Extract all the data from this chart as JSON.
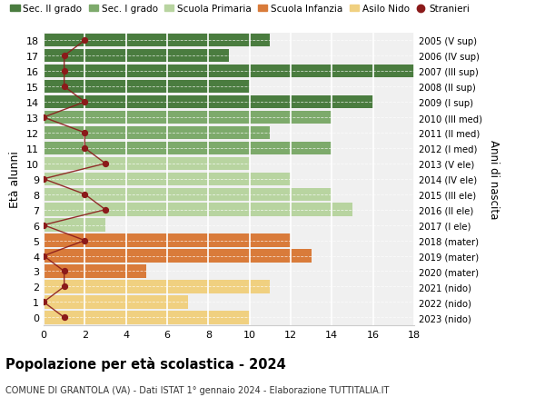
{
  "ages": [
    18,
    17,
    16,
    15,
    14,
    13,
    12,
    11,
    10,
    9,
    8,
    7,
    6,
    5,
    4,
    3,
    2,
    1,
    0
  ],
  "bar_values": [
    11,
    9,
    18,
    10,
    16,
    14,
    11,
    14,
    10,
    12,
    14,
    15,
    3,
    12,
    13,
    5,
    11,
    7,
    10
  ],
  "bar_colors": [
    "#4a7c3f",
    "#4a7c3f",
    "#4a7c3f",
    "#4a7c3f",
    "#4a7c3f",
    "#7daa6b",
    "#7daa6b",
    "#7daa6b",
    "#b8d4a0",
    "#b8d4a0",
    "#b8d4a0",
    "#b8d4a0",
    "#b8d4a0",
    "#d97b3a",
    "#d97b3a",
    "#d97b3a",
    "#f0d080",
    "#f0d080",
    "#f0d080"
  ],
  "right_labels": [
    "2005 (V sup)",
    "2006 (IV sup)",
    "2007 (III sup)",
    "2008 (II sup)",
    "2009 (I sup)",
    "2010 (III med)",
    "2011 (II med)",
    "2012 (I med)",
    "2013 (V ele)",
    "2014 (IV ele)",
    "2015 (III ele)",
    "2016 (II ele)",
    "2017 (I ele)",
    "2018 (mater)",
    "2019 (mater)",
    "2020 (mater)",
    "2021 (nido)",
    "2022 (nido)",
    "2023 (nido)"
  ],
  "stranieri_values": [
    2,
    1,
    1,
    1,
    2,
    0,
    2,
    2,
    3,
    0,
    2,
    3,
    0,
    2,
    0,
    1,
    1,
    0,
    1
  ],
  "legend_labels": [
    "Sec. II grado",
    "Sec. I grado",
    "Scuola Primaria",
    "Scuola Infanzia",
    "Asilo Nido",
    "Stranieri"
  ],
  "legend_colors": [
    "#4a7c3f",
    "#7daa6b",
    "#b8d4a0",
    "#d97b3a",
    "#f0d080",
    "#8b1a1a"
  ],
  "title": "Popolazione per età scolastica - 2024",
  "subtitle": "COMUNE DI GRANTOLA (VA) - Dati ISTAT 1° gennaio 2024 - Elaborazione TUTTITALIA.IT",
  "ylabel_left": "Età alunni",
  "ylabel_right": "Anni di nascita",
  "xlim": [
    0,
    18
  ],
  "background_color": "#ffffff",
  "bar_height": 0.85,
  "plot_bg": "#f0f0f0"
}
